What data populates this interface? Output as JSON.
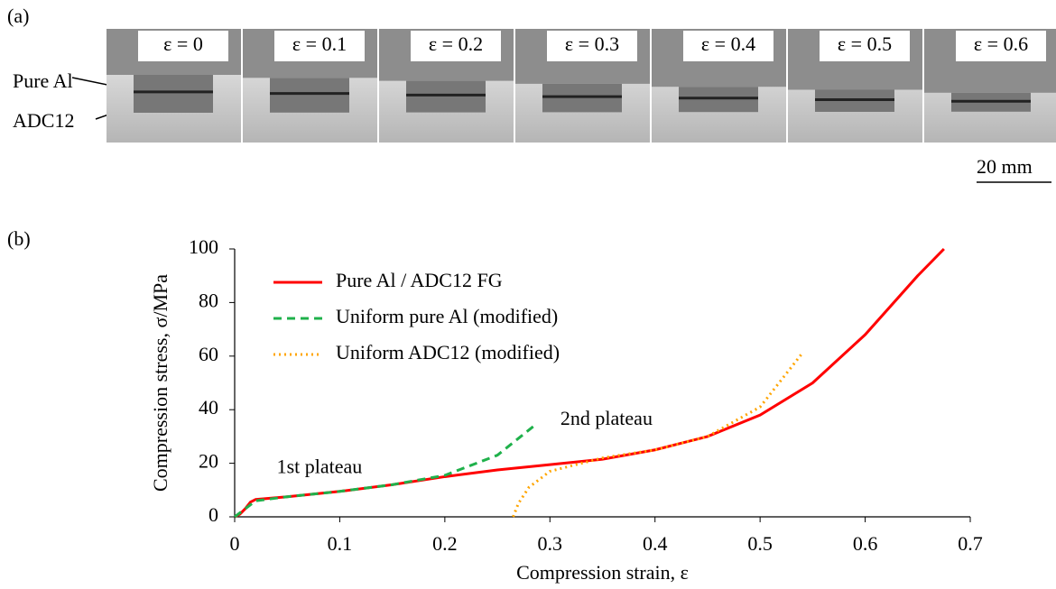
{
  "panel_a": {
    "label": "(a)",
    "frames": [
      "ε = 0",
      "ε = 0.1",
      "ε = 0.2",
      "ε = 0.3",
      "ε = 0.4",
      "ε = 0.5",
      "ε = 0.6"
    ],
    "layer_top": "Pure Al",
    "layer_bottom": "ADC12",
    "scale_bar": "20 mm"
  },
  "panel_b": {
    "label": "(b)"
  },
  "chart_data": {
    "type": "line",
    "x_label": "Compression strain, ε",
    "y_label": "Compression stress, σ/MPa",
    "xlim": [
      0,
      0.7
    ],
    "xticks": [
      0,
      0.1,
      0.2,
      0.3,
      0.4,
      0.5,
      0.6,
      0.7
    ],
    "ylim": [
      0,
      100
    ],
    "yticks": [
      0,
      20,
      40,
      60,
      80,
      100
    ],
    "legend": "upper left",
    "series": [
      {
        "name": "Pure Al / ADC12 FG",
        "color": "#ff0000",
        "style": "solid",
        "x": [
          0,
          0.005,
          0.01,
          0.015,
          0.02,
          0.05,
          0.1,
          0.15,
          0.2,
          0.25,
          0.3,
          0.35,
          0.4,
          0.45,
          0.5,
          0.55,
          0.6,
          0.65,
          0.675
        ],
        "values": [
          0,
          1,
          3,
          5.5,
          6.5,
          7.5,
          9.5,
          12,
          15,
          17.5,
          19.5,
          21.5,
          25,
          30,
          38,
          50,
          68,
          90,
          100
        ]
      },
      {
        "name": "Uniform pure Al (modified)",
        "color": "#1fb14b",
        "style": "dashed",
        "x": [
          0,
          0.01,
          0.02,
          0.05,
          0.1,
          0.15,
          0.2,
          0.25,
          0.285
        ],
        "values": [
          0,
          3,
          6,
          7.5,
          9.5,
          12,
          15.5,
          23,
          34
        ]
      },
      {
        "name": "Uniform ADC12 (modified)",
        "color": "#ffa500",
        "style": "dotted",
        "x": [
          0.265,
          0.27,
          0.28,
          0.3,
          0.35,
          0.4,
          0.45,
          0.5,
          0.54
        ],
        "values": [
          0,
          5,
          11,
          17,
          22,
          25,
          30,
          41,
          61
        ]
      }
    ],
    "annotations": [
      {
        "text": "1st plateau",
        "x": 0.04,
        "y": 18
      },
      {
        "text": "2nd plateau",
        "x": 0.31,
        "y": 36
      }
    ]
  }
}
